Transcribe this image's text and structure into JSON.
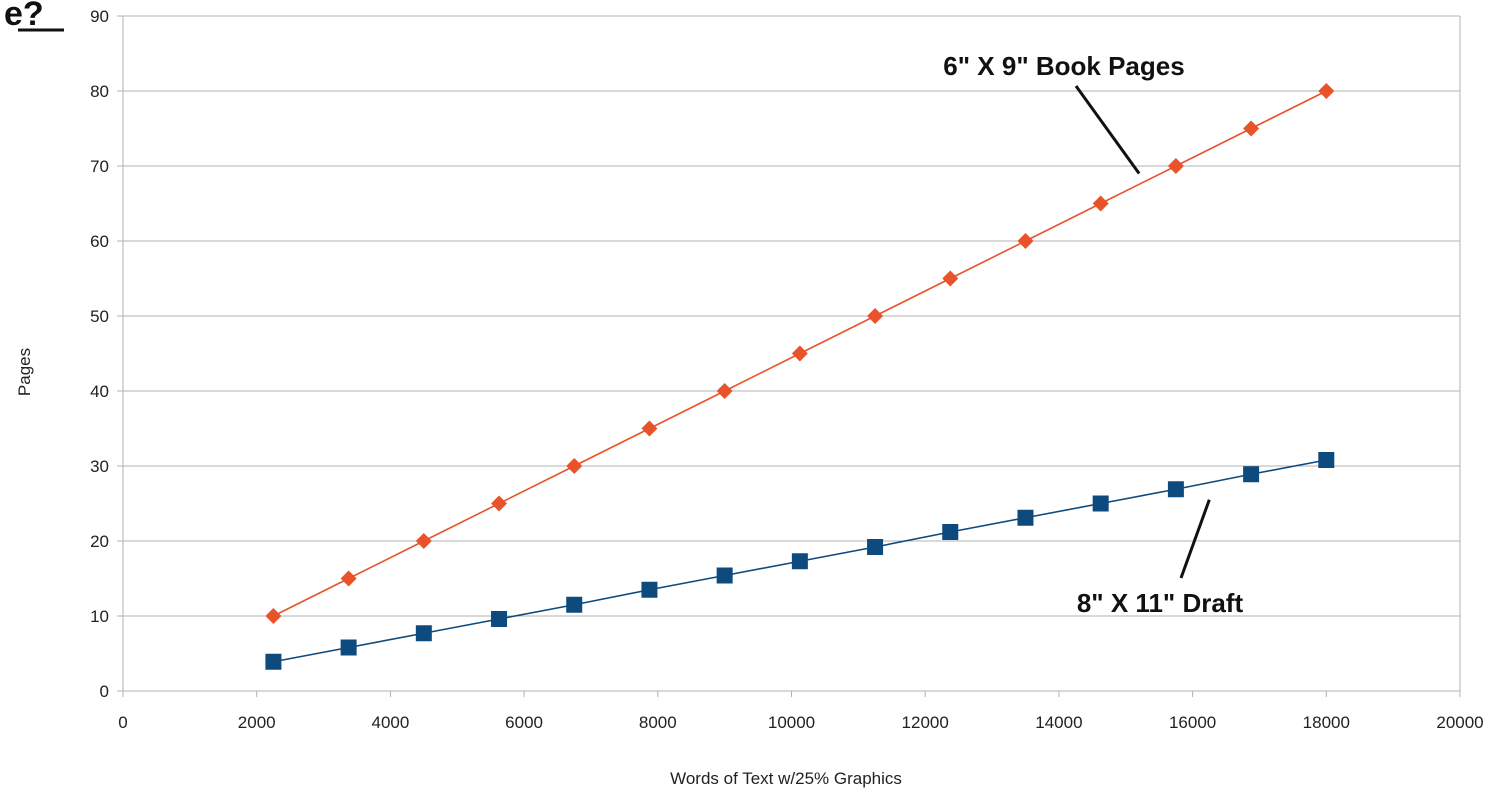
{
  "corner_text": "e?",
  "chart_data": {
    "type": "line",
    "xlabel": "Words of Text w/25% Graphics",
    "ylabel": "Pages",
    "xlim": [
      0,
      20000
    ],
    "ylim": [
      0,
      90
    ],
    "x_ticks": [
      0,
      2000,
      4000,
      6000,
      8000,
      10000,
      12000,
      14000,
      16000,
      18000,
      20000
    ],
    "y_ticks": [
      0,
      10,
      20,
      30,
      40,
      50,
      60,
      70,
      80,
      90
    ],
    "grid": "horizontal",
    "x": [
      2250,
      3375,
      4500,
      5625,
      6750,
      7875,
      9000,
      10125,
      11250,
      12375,
      13500,
      14625,
      15750,
      16875,
      18000
    ],
    "series": [
      {
        "name": "6\" X 9\" Book Pages",
        "color": "#e8532b",
        "marker": "diamond",
        "values": [
          10,
          15,
          20,
          25,
          30,
          35,
          40,
          45,
          50,
          55,
          60,
          65,
          70,
          75,
          80
        ]
      },
      {
        "name": "8\" X 11\" Draft",
        "color": "#0d4a7e",
        "marker": "square",
        "values": [
          3.9,
          5.8,
          7.7,
          9.6,
          11.5,
          13.5,
          15.4,
          17.3,
          19.2,
          21.2,
          23.1,
          25,
          26.9,
          28.9,
          30.8
        ]
      }
    ],
    "annotations": [
      {
        "text": "6\" X 9\" Book Pages",
        "series": 0,
        "anchor_x": 15200,
        "anchor_y": 69
      },
      {
        "text": "8\" X 11\" Draft",
        "series": 1,
        "anchor_x": 16250,
        "anchor_y": 25.5
      }
    ]
  }
}
